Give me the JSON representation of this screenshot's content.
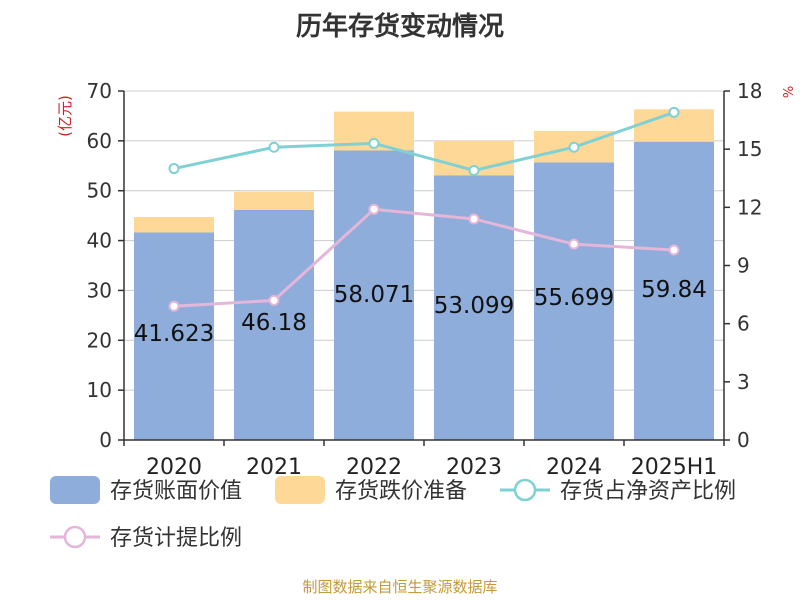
{
  "chart_data": {
    "type": "bar",
    "title": "历年存货变动情况",
    "categories": [
      "2020",
      "2021",
      "2022",
      "2023",
      "2024",
      "2025H1"
    ],
    "left_axis": {
      "label": "(亿元)",
      "ylim": [
        0,
        70
      ],
      "ticks": [
        "0",
        "10",
        "20",
        "30",
        "40",
        "50",
        "60",
        "70"
      ]
    },
    "right_axis": {
      "label": "%",
      "ylim": [
        0,
        18
      ],
      "ticks": [
        "0",
        "3",
        "6",
        "9",
        "12",
        "15",
        "18"
      ]
    },
    "series": [
      {
        "name": "存货账面价值",
        "kind": "bar",
        "axis": "left",
        "color": "#8eaddb",
        "values": [
          41.623,
          46.18,
          58.071,
          53.099,
          55.699,
          59.84
        ],
        "labels": [
          "41.623",
          "46.18",
          "58.071",
          "53.099",
          "55.699",
          "59.84"
        ]
      },
      {
        "name": "存货跌价准备",
        "kind": "bar-stacked",
        "axis": "left",
        "color": "#fdd897",
        "values": [
          3.1,
          3.6,
          7.8,
          6.9,
          6.3,
          6.5
        ]
      },
      {
        "name": "存货占净资产比例",
        "kind": "line",
        "axis": "right",
        "color": "#7fd1d4",
        "values": [
          14.0,
          15.1,
          15.3,
          13.9,
          15.1,
          16.9
        ]
      },
      {
        "name": "存货计提比例",
        "kind": "line",
        "axis": "right",
        "color": "#e4b6da",
        "values": [
          6.9,
          7.2,
          11.9,
          11.4,
          10.1,
          9.8
        ]
      }
    ],
    "grid": true,
    "legend_position": "bottom"
  },
  "source": "制图数据来自恒生聚源数据库"
}
